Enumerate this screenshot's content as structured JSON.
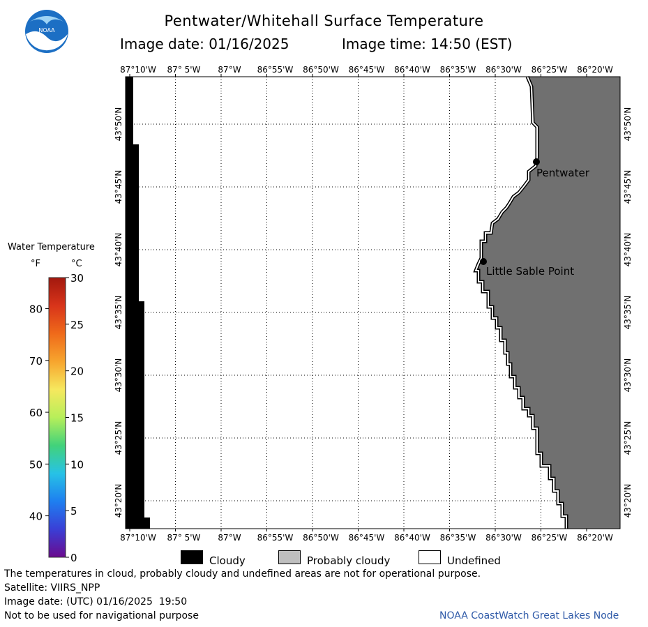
{
  "header": {
    "title": "Pentwater/Whitehall Surface Temperature",
    "image_date_label": "Image date: 01/16/2025",
    "image_time_label": "Image time: 14:50 (EST)"
  },
  "logo": {
    "text": "NOAA"
  },
  "map": {
    "lon_labels": [
      "87°10'W",
      "87° 5'W",
      "87°W",
      "86°55'W",
      "86°50'W",
      "86°45'W",
      "86°40'W",
      "86°35'W",
      "86°30'W",
      "86°25'W",
      "86°20'W"
    ],
    "lat_labels": [
      "43°50'N",
      "43°45'N",
      "43°40'N",
      "43°35'N",
      "43°30'N",
      "43°25'N",
      "43°20'N"
    ],
    "places": [
      {
        "name": "Pentwater"
      },
      {
        "name": "Little Sable Point"
      }
    ],
    "colors": {
      "land": "#707070",
      "cloud": "#000000",
      "grid": "#000000",
      "outline": "#000000"
    }
  },
  "legend": {
    "title": "Water Temperature",
    "unit_f": "°F",
    "unit_c": "°C",
    "f_ticks": [
      "80",
      "70",
      "60",
      "50",
      "40"
    ],
    "c_ticks": [
      "30",
      "25",
      "20",
      "15",
      "10",
      "5",
      "0"
    ],
    "scale_colors": [
      "#6a0a8e",
      "#3a3fd6",
      "#1e7ff0",
      "#27c2e6",
      "#42d27a",
      "#b7ef5a",
      "#f6e85e",
      "#f7a52e",
      "#ef6a1a",
      "#d8341a",
      "#a2180e"
    ]
  },
  "key": {
    "cloudy": "Cloudy",
    "probably_cloudy": "Probably cloudy",
    "undefined": "Undefined",
    "colors": {
      "cloudy": "#000000",
      "probably_cloudy": "#bfbfbf",
      "undefined": "#ffffff"
    }
  },
  "footer": {
    "disclaimer": "The temperatures in cloud, probably cloudy and undefined areas are not for operational purpose.",
    "satellite": "Satellite: VIIRS_NPP",
    "utc_date": "Image date: (UTC) 01/16/2025  19:50",
    "nav_warning": "Not to be used for navigational purpose",
    "credit": "NOAA CoastWatch Great Lakes Node"
  }
}
